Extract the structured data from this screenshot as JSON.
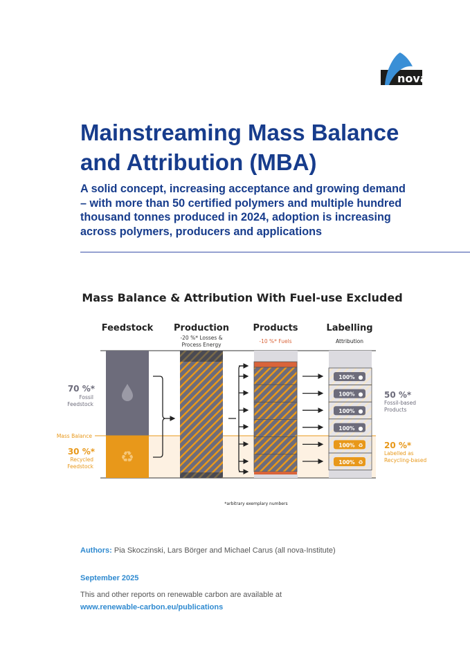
{
  "logo": {
    "text": "nova"
  },
  "title": {
    "line1": "Mainstreaming Mass Balance",
    "line2": "and Attribution (MBA)"
  },
  "subtitle": {
    "lines": [
      "A solid concept, increasing acceptance and growing demand",
      "– with more than 50 certified polymers and multiple hundred",
      "thousand tonnes produced in 2024, adoption is increasing",
      "across polymers, producers and applications"
    ]
  },
  "diagram": {
    "title": "Mass Balance & Attribution With Fuel-use Excluded",
    "columns": [
      {
        "label": "Feedstock",
        "sub": ""
      },
      {
        "label": "Production",
        "sub1": "-20 %* Losses &",
        "sub2": "Process Energy"
      },
      {
        "label": "Products",
        "sub": "-10 %* Fuels"
      },
      {
        "label": "Labelling",
        "sub": "Attribution"
      }
    ],
    "left": {
      "fossil_pct": "70 %*",
      "fossil_l1": "Fossil",
      "fossil_l2": "Feedstock",
      "mass_balance": "Mass Balance",
      "recycled_pct": "30 %*",
      "recycled_l1": "Recycled",
      "recycled_l2": "Feedstock"
    },
    "right": {
      "fossil_pct": "50 %*",
      "fossil_l1": "Fossil-based",
      "fossil_l2": "Products",
      "recyc_pct": "20 %*",
      "recyc_l1": "Labelled as",
      "recyc_l2": "Recycling-based"
    },
    "labels": [
      "100%",
      "100%",
      "100%",
      "100%",
      "100%",
      "100%"
    ],
    "note": "*arbitrary exemplary numbers",
    "colors": {
      "fossil": "#6d6c7b",
      "recycled": "#e8981a",
      "fuel": "#d9643a",
      "navy": "#173c8c"
    }
  },
  "footer": {
    "authors_label": "Authors:",
    "authors": " Pia Skoczinski, Lars Börger and Michael Carus (all nova-Institute)",
    "date": "September 2025",
    "note": "This and other reports on renewable carbon are available at",
    "url": "www.renewable-carbon.eu/publications"
  }
}
